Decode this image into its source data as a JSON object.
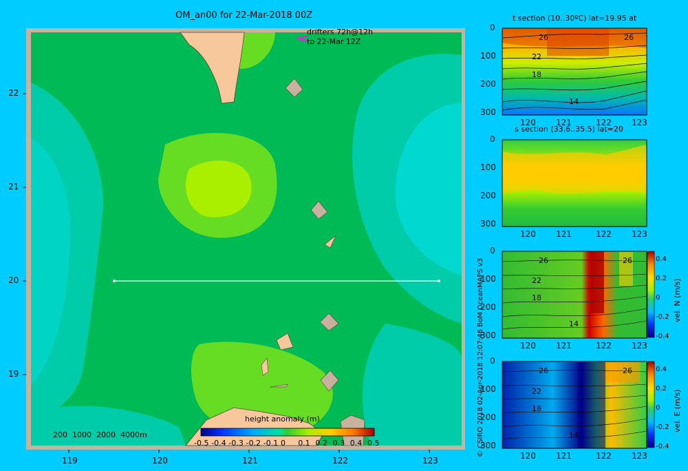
{
  "map": {
    "title": "OM_an00 for 22-Mar-2018 00Z",
    "drifter_note_line1": "drifters 72h@12h",
    "drifter_note_line2": "to 22-Mar 12Z",
    "x_ticks": [
      "119",
      "120",
      "121",
      "122",
      "123"
    ],
    "y_ticks": [
      "22",
      "21",
      "20",
      "19"
    ],
    "depth_legend": "200  1000  2000  4000m",
    "colorbar_title": "height anomaly  (m)",
    "colorbar_ticks": [
      "-0.5",
      "-0.4",
      "-0.3",
      "-0.2",
      "-0.1",
      "0",
      "0.1",
      "0.2",
      "0.3",
      "0.4",
      "0.5"
    ],
    "colors": {
      "background": "#00ccff",
      "land": "#f7c89b",
      "coast_shelf": "#c6b29e",
      "drifter": "#cc33cc"
    }
  },
  "credit": "© CSIRO 2018   02-Apr-2018 12:07:46 BoM OceanMAPS v3",
  "panels": {
    "temp": {
      "title": "t section (10..30ºC) lat=19.95 at",
      "contour_labels": [
        "26",
        "22",
        "18",
        "14",
        "26"
      ],
      "x_ticks": [
        "120",
        "121",
        "122",
        "123"
      ],
      "y_ticks": [
        "0",
        "100",
        "200",
        "300"
      ]
    },
    "salt": {
      "title": "s section (33.6..35.5) lat=20",
      "x_ticks": [
        "120",
        "121",
        "122",
        "123"
      ],
      "y_ticks": [
        "0",
        "100",
        "200",
        "300"
      ]
    },
    "veln": {
      "contour_labels": [
        "26",
        "22",
        "18",
        "14",
        "26"
      ],
      "x_ticks": [
        "120",
        "121",
        "122",
        "123"
      ],
      "y_ticks": [
        "0",
        "100",
        "200",
        "300"
      ],
      "colorbar_label": "vel. N (m/s)",
      "colorbar_ticks": [
        "0.4",
        "0.2",
        "0",
        "-0.2",
        "-0.4"
      ]
    },
    "vele": {
      "contour_labels": [
        "26",
        "22",
        "18",
        "14",
        "26"
      ],
      "x_ticks": [
        "120",
        "121",
        "122",
        "123"
      ],
      "y_ticks": [
        "0",
        "100",
        "200",
        "300"
      ],
      "colorbar_label": "vel. E (m/s)",
      "colorbar_ticks": [
        "0.4",
        "0.2",
        "0",
        "-0.2",
        "-0.4"
      ]
    }
  }
}
